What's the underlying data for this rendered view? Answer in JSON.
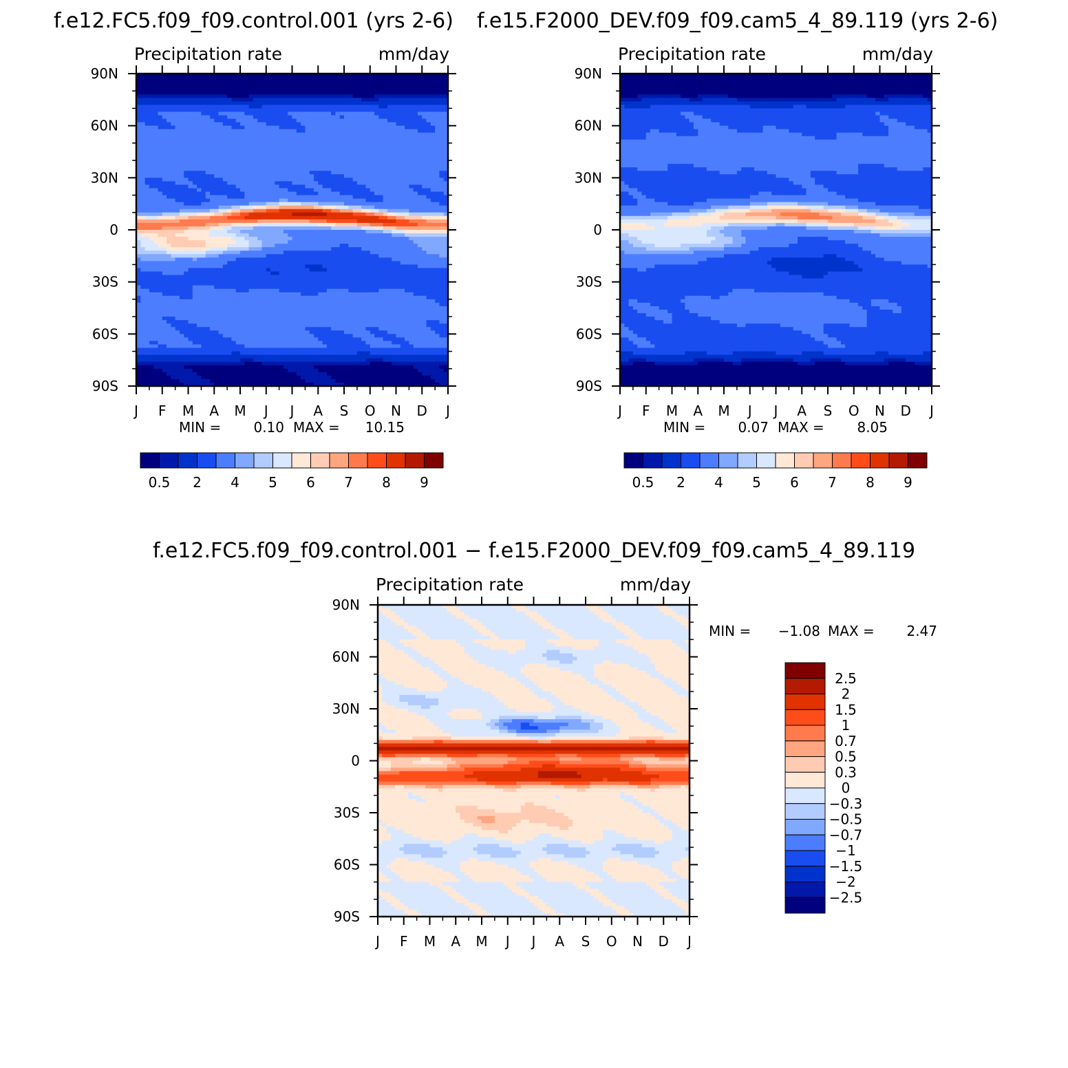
{
  "chart_data": [
    {
      "type": "heatmap",
      "title": "f.e12.FC5.f09_f09.control.001 (yrs 2-6)",
      "left_label": "Precipitation rate",
      "right_label": "mm/day",
      "x_ticks": [
        "J",
        "F",
        "M",
        "A",
        "M",
        "J",
        "J",
        "A",
        "S",
        "O",
        "N",
        "D",
        "J"
      ],
      "y_ticks": [
        "90N",
        "60N",
        "30N",
        "0",
        "30S",
        "60S",
        "90S"
      ],
      "ylim": [
        -90,
        90
      ],
      "stats": {
        "min_label": "MIN =",
        "min": "0.10",
        "max_label": "MAX =",
        "max": "10.15"
      },
      "levels": [
        0.5,
        1,
        2,
        3,
        4,
        4.5,
        5,
        5.5,
        6,
        6.5,
        7,
        7.5,
        8,
        9
      ],
      "colorbar_labels": [
        "0.5",
        "2",
        "4",
        "5",
        "6",
        "7",
        "8",
        "9"
      ],
      "colors": [
        "#00007f",
        "#0019aa",
        "#0033cc",
        "#1a4df0",
        "#4d7dff",
        "#80a8ff",
        "#b3ccff",
        "#d9e8ff",
        "#ffe8d6",
        "#ffccb3",
        "#ffa580",
        "#ff7a4d",
        "#ff4d1a",
        "#e03300",
        "#b31a00",
        "#800000"
      ]
    },
    {
      "type": "heatmap",
      "title": "f.e15.F2000_DEV.f09_f09.cam5_4_89.119 (yrs 2-6)",
      "left_label": "Precipitation rate",
      "right_label": "mm/day",
      "x_ticks": [
        "J",
        "F",
        "M",
        "A",
        "M",
        "J",
        "J",
        "A",
        "S",
        "O",
        "N",
        "D",
        "J"
      ],
      "y_ticks": [
        "90N",
        "60N",
        "30N",
        "0",
        "30S",
        "60S",
        "90S"
      ],
      "ylim": [
        -90,
        90
      ],
      "stats": {
        "min_label": "MIN =",
        "min": "0.07",
        "max_label": "MAX =",
        "max": "8.05"
      },
      "levels": [
        0.5,
        1,
        2,
        3,
        4,
        4.5,
        5,
        5.5,
        6,
        6.5,
        7,
        7.5,
        8,
        9
      ],
      "colorbar_labels": [
        "0.5",
        "2",
        "4",
        "5",
        "6",
        "7",
        "8",
        "9"
      ],
      "colors": [
        "#00007f",
        "#0019aa",
        "#0033cc",
        "#1a4df0",
        "#4d7dff",
        "#80a8ff",
        "#b3ccff",
        "#d9e8ff",
        "#ffe8d6",
        "#ffccb3",
        "#ffa580",
        "#ff7a4d",
        "#ff4d1a",
        "#e03300",
        "#b31a00",
        "#800000"
      ]
    },
    {
      "type": "heatmap",
      "title": "f.e12.FC5.f09_f09.control.001 − f.e15.F2000_DEV.f09_f09.cam5_4_89.119",
      "left_label": "Precipitation rate",
      "right_label": "mm/day",
      "x_ticks": [
        "J",
        "F",
        "M",
        "A",
        "M",
        "J",
        "J",
        "A",
        "S",
        "O",
        "N",
        "D",
        "J"
      ],
      "y_ticks": [
        "90N",
        "60N",
        "30N",
        "0",
        "30S",
        "60S",
        "90S"
      ],
      "ylim": [
        -90,
        90
      ],
      "stats": {
        "min_label": "MIN =",
        "min": "−1.08",
        "max_label": "MAX =",
        "max": "2.47"
      },
      "levels": [
        2.5,
        2,
        1.5,
        1,
        0.7,
        0.5,
        0.3,
        0,
        -0.3,
        -0.5,
        -0.7,
        -1,
        -1.5,
        -2,
        -2.5
      ],
      "colorbar_labels": [
        "2.5",
        "2",
        "1.5",
        "1",
        "0.7",
        "0.5",
        "0.3",
        "0",
        "−0.3",
        "−0.5",
        "−0.7",
        "−1",
        "−1.5",
        "−2",
        "−2.5"
      ],
      "colors": [
        "#800000",
        "#b31a00",
        "#e03300",
        "#ff4d1a",
        "#ff7a4d",
        "#ffa580",
        "#ffccb3",
        "#ffe8d6",
        "#d9e8ff",
        "#b3ccff",
        "#80a8ff",
        "#4d7dff",
        "#1a4df0",
        "#0033cc",
        "#0019aa",
        "#00007f"
      ]
    }
  ]
}
